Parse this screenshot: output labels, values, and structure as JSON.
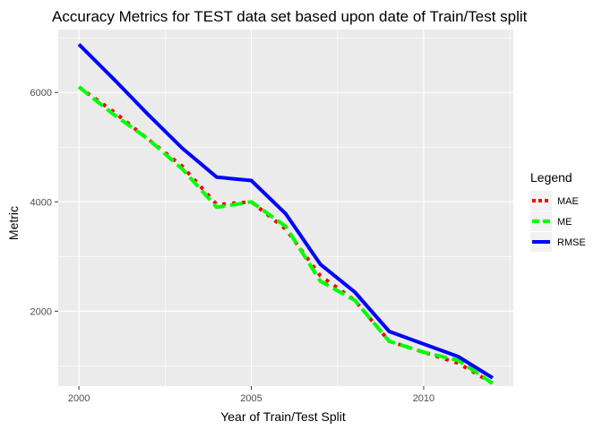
{
  "chart_data": {
    "type": "line",
    "title": "Accuracy Metrics for TEST data set based upon date of Train/Test split",
    "xlabel": "Year of Train/Test Split",
    "ylabel": "Metric",
    "xlim": [
      1999.4,
      2012.6
    ],
    "ylim": [
      630,
      7150
    ],
    "x_ticks": [
      2000,
      2005,
      2010
    ],
    "x_minor_ticks": [
      2002.5,
      2007.5,
      2012.5
    ],
    "y_ticks": [
      2000,
      4000,
      6000
    ],
    "y_minor_ticks": [
      1000,
      3000,
      5000,
      7000
    ],
    "x_tick_labels": [
      "2000",
      "2005",
      "2010"
    ],
    "y_tick_labels": [
      "2000",
      "4000",
      "6000"
    ],
    "x": [
      2000,
      2001,
      2002,
      2003,
      2004,
      2005,
      2006,
      2007,
      2008,
      2009,
      2010,
      2011,
      2012
    ],
    "legend_title": "Legend",
    "legend_position": "right",
    "grid": true,
    "panel_background": "#ebebeb",
    "series": [
      {
        "name": "MAE",
        "color": "#ff0000",
        "dash": "dotted",
        "values": [
          6100,
          5650,
          5150,
          4650,
          3950,
          4000,
          3500,
          2650,
          2200,
          1450,
          1250,
          1050,
          680
        ]
      },
      {
        "name": "ME",
        "color": "#00ff00",
        "dash": "dashed",
        "values": [
          6100,
          5600,
          5150,
          4600,
          3900,
          4000,
          3550,
          2550,
          2200,
          1450,
          1250,
          1100,
          680
        ]
      },
      {
        "name": "RMSE",
        "color": "#0000ff",
        "dash": "solid",
        "values": [
          6880,
          6250,
          5600,
          4980,
          4450,
          4390,
          3780,
          2860,
          2350,
          1630,
          1400,
          1170,
          780
        ]
      }
    ]
  }
}
